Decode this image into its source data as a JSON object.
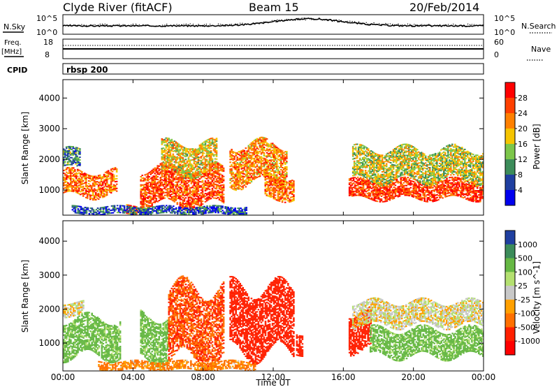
{
  "header": {
    "title": "Clyde River (fitACF)",
    "beam": "Beam 15",
    "date": "20/Feb/2014"
  },
  "top_panel": {
    "nsky_label": "N.Sky",
    "nsky_ticks": [
      "10^5",
      "10^0"
    ],
    "nsearch_label": "N.Search",
    "nsearch_ticks": [
      "10^5",
      "10^0"
    ]
  },
  "freq_panel": {
    "freq_label": "Freq.",
    "freq_unit": "[MHz]",
    "freq_ticks": [
      "18",
      "8"
    ],
    "nave_label": "Nave",
    "nave_ticks": [
      "60",
      "0"
    ]
  },
  "cpid": {
    "label": "CPID",
    "value": "rbsp 200"
  },
  "x_axis": {
    "label": "Time UT",
    "ticks": [
      "00:00",
      "04:00",
      "08:00",
      "12:00",
      "16:00",
      "20:00",
      "00:00"
    ]
  },
  "colors": {
    "power_scale": [
      "#0000ee",
      "#1f3fa0",
      "#3c8c5a",
      "#7cc64a",
      "#f5c400",
      "#ff8000",
      "#ff4000",
      "#ff0000"
    ],
    "velocity_scale": [
      "#1f3fa0",
      "#3c8c5a",
      "#66b844",
      "#b4e070",
      "#c8c8c8",
      "#ffa000",
      "#ff7000",
      "#ff2000",
      "#ff0000"
    ],
    "ground_scatter": "#a0a0a0"
  },
  "chart_data": [
    {
      "type": "heatmap",
      "title": "",
      "xlabel": "Time UT",
      "ylabel": "Slant Range [km]",
      "xlim": [
        0,
        24
      ],
      "ylim": [
        180,
        4600
      ],
      "y_ticks": [
        "1000",
        "2000",
        "3000",
        "4000"
      ],
      "colorbar": {
        "label": "Power [dB]",
        "ticks": [
          "4",
          "8",
          "12",
          "16",
          "20",
          "24",
          "28"
        ],
        "range": [
          0,
          32
        ]
      },
      "regions": [
        {
          "t0": 0.0,
          "t1": 3.1,
          "r0": 800,
          "r1": 1600,
          "value": 24
        },
        {
          "t0": 0.0,
          "t1": 1.0,
          "r0": 1700,
          "r1": 2300,
          "value": 10
        },
        {
          "t0": 3.6,
          "t1": 4.3,
          "r0": 200,
          "r1": 500,
          "value": 26
        },
        {
          "t0": 4.4,
          "t1": 9.2,
          "r0": 500,
          "r1": 1700,
          "value": 26
        },
        {
          "t0": 5.6,
          "t1": 8.8,
          "r0": 1500,
          "r1": 2500,
          "value": 18
        },
        {
          "t0": 0.5,
          "t1": 10.5,
          "r0": 200,
          "r1": 450,
          "value": 6
        },
        {
          "t0": 9.5,
          "t1": 12.8,
          "r0": 1200,
          "r1": 2500,
          "value": 22
        },
        {
          "t0": 11.5,
          "t1": 13.2,
          "r0": 700,
          "r1": 1400,
          "value": 24
        },
        {
          "t0": 16.3,
          "t1": 24.0,
          "r0": 700,
          "r1": 1300,
          "value": 27
        },
        {
          "t0": 16.5,
          "t1": 24.0,
          "r0": 1300,
          "r1": 2300,
          "value": 16
        }
      ]
    },
    {
      "type": "heatmap",
      "title": "",
      "xlabel": "Time UT",
      "ylabel": "Slant Range [km]",
      "xlim": [
        0,
        24
      ],
      "ylim": [
        180,
        4600
      ],
      "y_ticks": [
        "1000",
        "2000",
        "3000",
        "4000"
      ],
      "colorbar": {
        "label": "Velocity [m s^-1]",
        "ticks": [
          "1000",
          "500",
          "100",
          "25",
          "-25",
          "-100",
          "-500",
          "-1000"
        ]
      },
      "regions": [
        {
          "t0": 0.0,
          "t1": 3.3,
          "r0": 600,
          "r1": 1700,
          "value": 100
        },
        {
          "t0": 0.0,
          "t1": 1.2,
          "r0": 1800,
          "r1": 2200,
          "value": 0
        },
        {
          "t0": 4.4,
          "t1": 6.0,
          "r0": 500,
          "r1": 1800,
          "value": 100
        },
        {
          "t0": 6.0,
          "t1": 9.2,
          "r0": 500,
          "r1": 2600,
          "value": -300
        },
        {
          "t0": 9.5,
          "t1": 13.2,
          "r0": 700,
          "r1": 2600,
          "value": -400
        },
        {
          "t0": 2.0,
          "t1": 11.0,
          "r0": 200,
          "r1": 450,
          "value": -80
        },
        {
          "t0": 13.3,
          "t1": 13.7,
          "r0": 700,
          "r1": 1300,
          "value": -400
        },
        {
          "t0": 16.3,
          "t1": 17.6,
          "r0": 800,
          "r1": 1900,
          "value": -400
        },
        {
          "t0": 17.5,
          "t1": 24.0,
          "r0": 600,
          "r1": 1400,
          "value": 100
        },
        {
          "t0": 16.5,
          "t1": 24.0,
          "r0": 1500,
          "r1": 2200,
          "value": 0
        }
      ]
    }
  ]
}
